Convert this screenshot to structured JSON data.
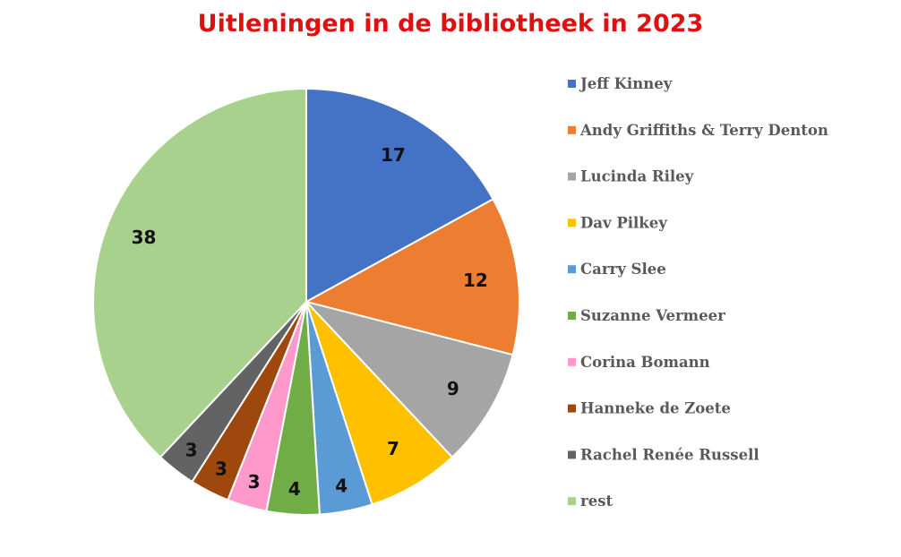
{
  "chart_data": {
    "type": "pie",
    "title": "Uitleningen in de bibliotheek in 2023",
    "title_color": "#e01010",
    "categories": [
      "Jeff Kinney",
      "Andy Griffiths & Terry Denton",
      "Lucinda Riley",
      "Dav Pilkey",
      "Carry Slee",
      "Suzanne Vermeer",
      "Corina Bomann",
      "Hanneke de Zoete",
      "Rachel Renée Russell",
      "rest"
    ],
    "values": [
      17,
      12,
      9,
      7,
      4,
      4,
      3,
      3,
      3,
      38
    ],
    "colors": [
      "#4472c4",
      "#ed7d31",
      "#a5a5a5",
      "#ffc000",
      "#5b9bd5",
      "#70ad47",
      "#ff99cc",
      "#9e480e",
      "#636363",
      "#a9d18e"
    ],
    "legend_position": "right",
    "data_labels": true
  }
}
